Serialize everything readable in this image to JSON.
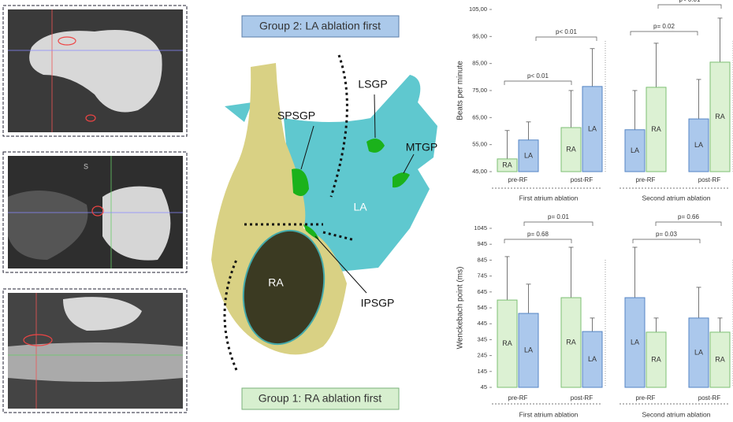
{
  "figure": {
    "group2_label": "Group 2: LA ablation first",
    "group1_label": "Group 1: RA ablation first",
    "structures": {
      "lsgp": "LSGP",
      "spsgp": "SPSGP",
      "mtgp": "MTGP",
      "la": "LA",
      "ra": "RA",
      "ipsgp": "IPSGP"
    },
    "ct_marker": "S"
  },
  "chart_data": [
    {
      "type": "bar",
      "y_label": "Beats per minute",
      "ylim": [
        45,
        105
      ],
      "yticks": [
        {
          "value": 45,
          "label": "45,00"
        },
        {
          "value": 55,
          "label": "55,00"
        },
        {
          "value": 65,
          "label": "65,00"
        },
        {
          "value": 75,
          "label": "75,00"
        },
        {
          "value": 85,
          "label": "85,00"
        },
        {
          "value": 95,
          "label": "95,00"
        },
        {
          "value": 105,
          "label": "105,00"
        }
      ],
      "bar_colors": {
        "RA": "#dcf1d3",
        "LA": "#abc8ec"
      },
      "bar_strokes": {
        "RA": "#7cbf73",
        "LA": "#5585c4"
      },
      "panels": [
        {
          "title": "First atrium ablation",
          "annotations": [
            "p< 0.01",
            "p< 0.01"
          ],
          "groups": [
            {
              "name": "pre-RF",
              "bars": [
                {
                  "label": "RA",
                  "value": 49.7,
                  "error": 10.5
                },
                {
                  "label": "LA",
                  "value": 56.7,
                  "error": 6.7
                }
              ]
            },
            {
              "name": "post-RF",
              "bars": [
                {
                  "label": "RA",
                  "value": 61.3,
                  "error": 13.7
                },
                {
                  "label": "LA",
                  "value": 76.5,
                  "error": 14
                }
              ]
            }
          ]
        },
        {
          "title": "Second atrium ablation",
          "annotations": [
            "p= 0.02",
            "p< 0.01"
          ],
          "groups": [
            {
              "name": "pre-RF",
              "bars": [
                {
                  "label": "LA",
                  "value": 60.5,
                  "error": 14.5
                },
                {
                  "label": "RA",
                  "value": 76.2,
                  "error": 16.3
                }
              ]
            },
            {
              "name": "post-RF",
              "bars": [
                {
                  "label": "LA",
                  "value": 64.5,
                  "error": 14.6
                },
                {
                  "label": "RA",
                  "value": 85.5,
                  "error": 16.3
                }
              ]
            }
          ]
        }
      ]
    },
    {
      "type": "bar",
      "y_label": "Wenckebach point (ms)",
      "ylim": [
        45,
        1045
      ],
      "yticks": [
        45,
        145,
        245,
        345,
        445,
        545,
        645,
        745,
        845,
        945,
        1045
      ],
      "bar_colors": {
        "RA": "#dcf1d3",
        "LA": "#abc8ec"
      },
      "bar_strokes": {
        "RA": "#7cbf73",
        "LA": "#5585c4"
      },
      "panels": [
        {
          "title": "First atrium ablation",
          "annotations": [
            "p= 0.68",
            "p= 0.01"
          ],
          "groups": [
            {
              "name": "pre-RF",
              "bars": [
                {
                  "label": "RA",
                  "value": 594,
                  "error": 273
                },
                {
                  "label": "LA",
                  "value": 510,
                  "error": 184
                }
              ]
            },
            {
              "name": "post-RF",
              "bars": [
                {
                  "label": "RA",
                  "value": 609,
                  "error": 317
                },
                {
                  "label": "LA",
                  "value": 396,
                  "error": 85
                }
              ]
            }
          ]
        },
        {
          "title": "Second atrium ablation",
          "annotations": [
            "p= 0.03",
            "p= 0.66"
          ],
          "groups": [
            {
              "name": "pre-RF",
              "bars": [
                {
                  "label": "LA",
                  "value": 609,
                  "error": 317
                },
                {
                  "label": "RA",
                  "value": 392,
                  "error": 89
                }
              ]
            },
            {
              "name": "post-RF",
              "bars": [
                {
                  "label": "LA",
                  "value": 481,
                  "error": 193
                },
                {
                  "label": "RA",
                  "value": 392,
                  "error": 89
                }
              ]
            }
          ]
        }
      ]
    }
  ]
}
